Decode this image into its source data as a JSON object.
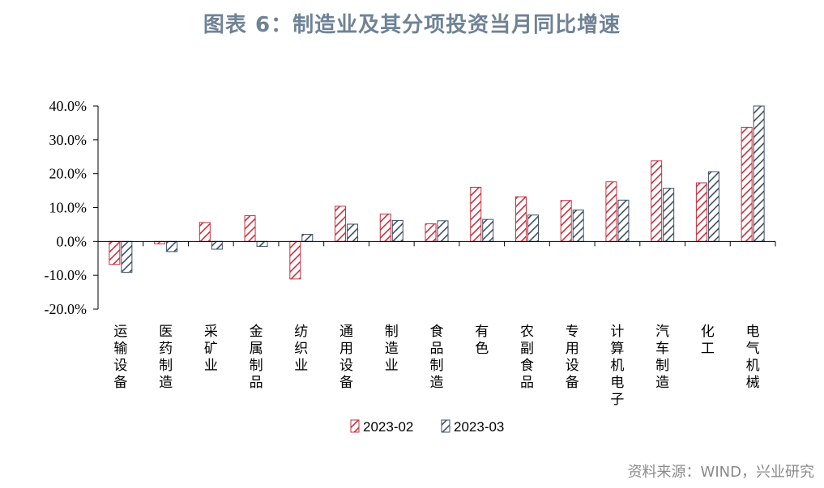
{
  "title": "图表 6：制造业及其分项投资当月同比增速",
  "source": "资料来源：WIND，兴业研究",
  "colors": {
    "series1": "#c8303d",
    "series2": "#3d4f66",
    "axis": "#000000",
    "title": "#6f8296"
  },
  "chart_data": {
    "type": "bar",
    "categories": [
      "运输设备",
      "医药制造",
      "采矿业",
      "金属制品",
      "纺织业",
      "通用设备",
      "制造业",
      "食品制造",
      "有色",
      "农副食品",
      "专用设备",
      "计算机电子",
      "汽车制造",
      "化工",
      "电气机械"
    ],
    "series": [
      {
        "name": "2023-02",
        "values": [
          -6.8,
          -0.7,
          5.6,
          7.6,
          -11.1,
          10.4,
          8.1,
          5.2,
          16.0,
          13.2,
          12.1,
          17.6,
          23.8,
          17.3,
          33.7
        ]
      },
      {
        "name": "2023-03",
        "values": [
          -9.1,
          -3.0,
          -2.3,
          -1.5,
          2.1,
          5.1,
          6.2,
          6.1,
          6.5,
          7.8,
          9.3,
          12.2,
          15.7,
          20.6,
          40.0
        ]
      }
    ],
    "ylim": [
      -20,
      40
    ],
    "yticks": [
      "40.0%",
      "30.0%",
      "20.0%",
      "10.0%",
      "0.0%",
      "-10.0%",
      "-20.0%"
    ],
    "ytick_values": [
      40,
      30,
      20,
      10,
      0,
      -10,
      -20
    ],
    "grid": false,
    "legend_position": "bottom-center"
  }
}
